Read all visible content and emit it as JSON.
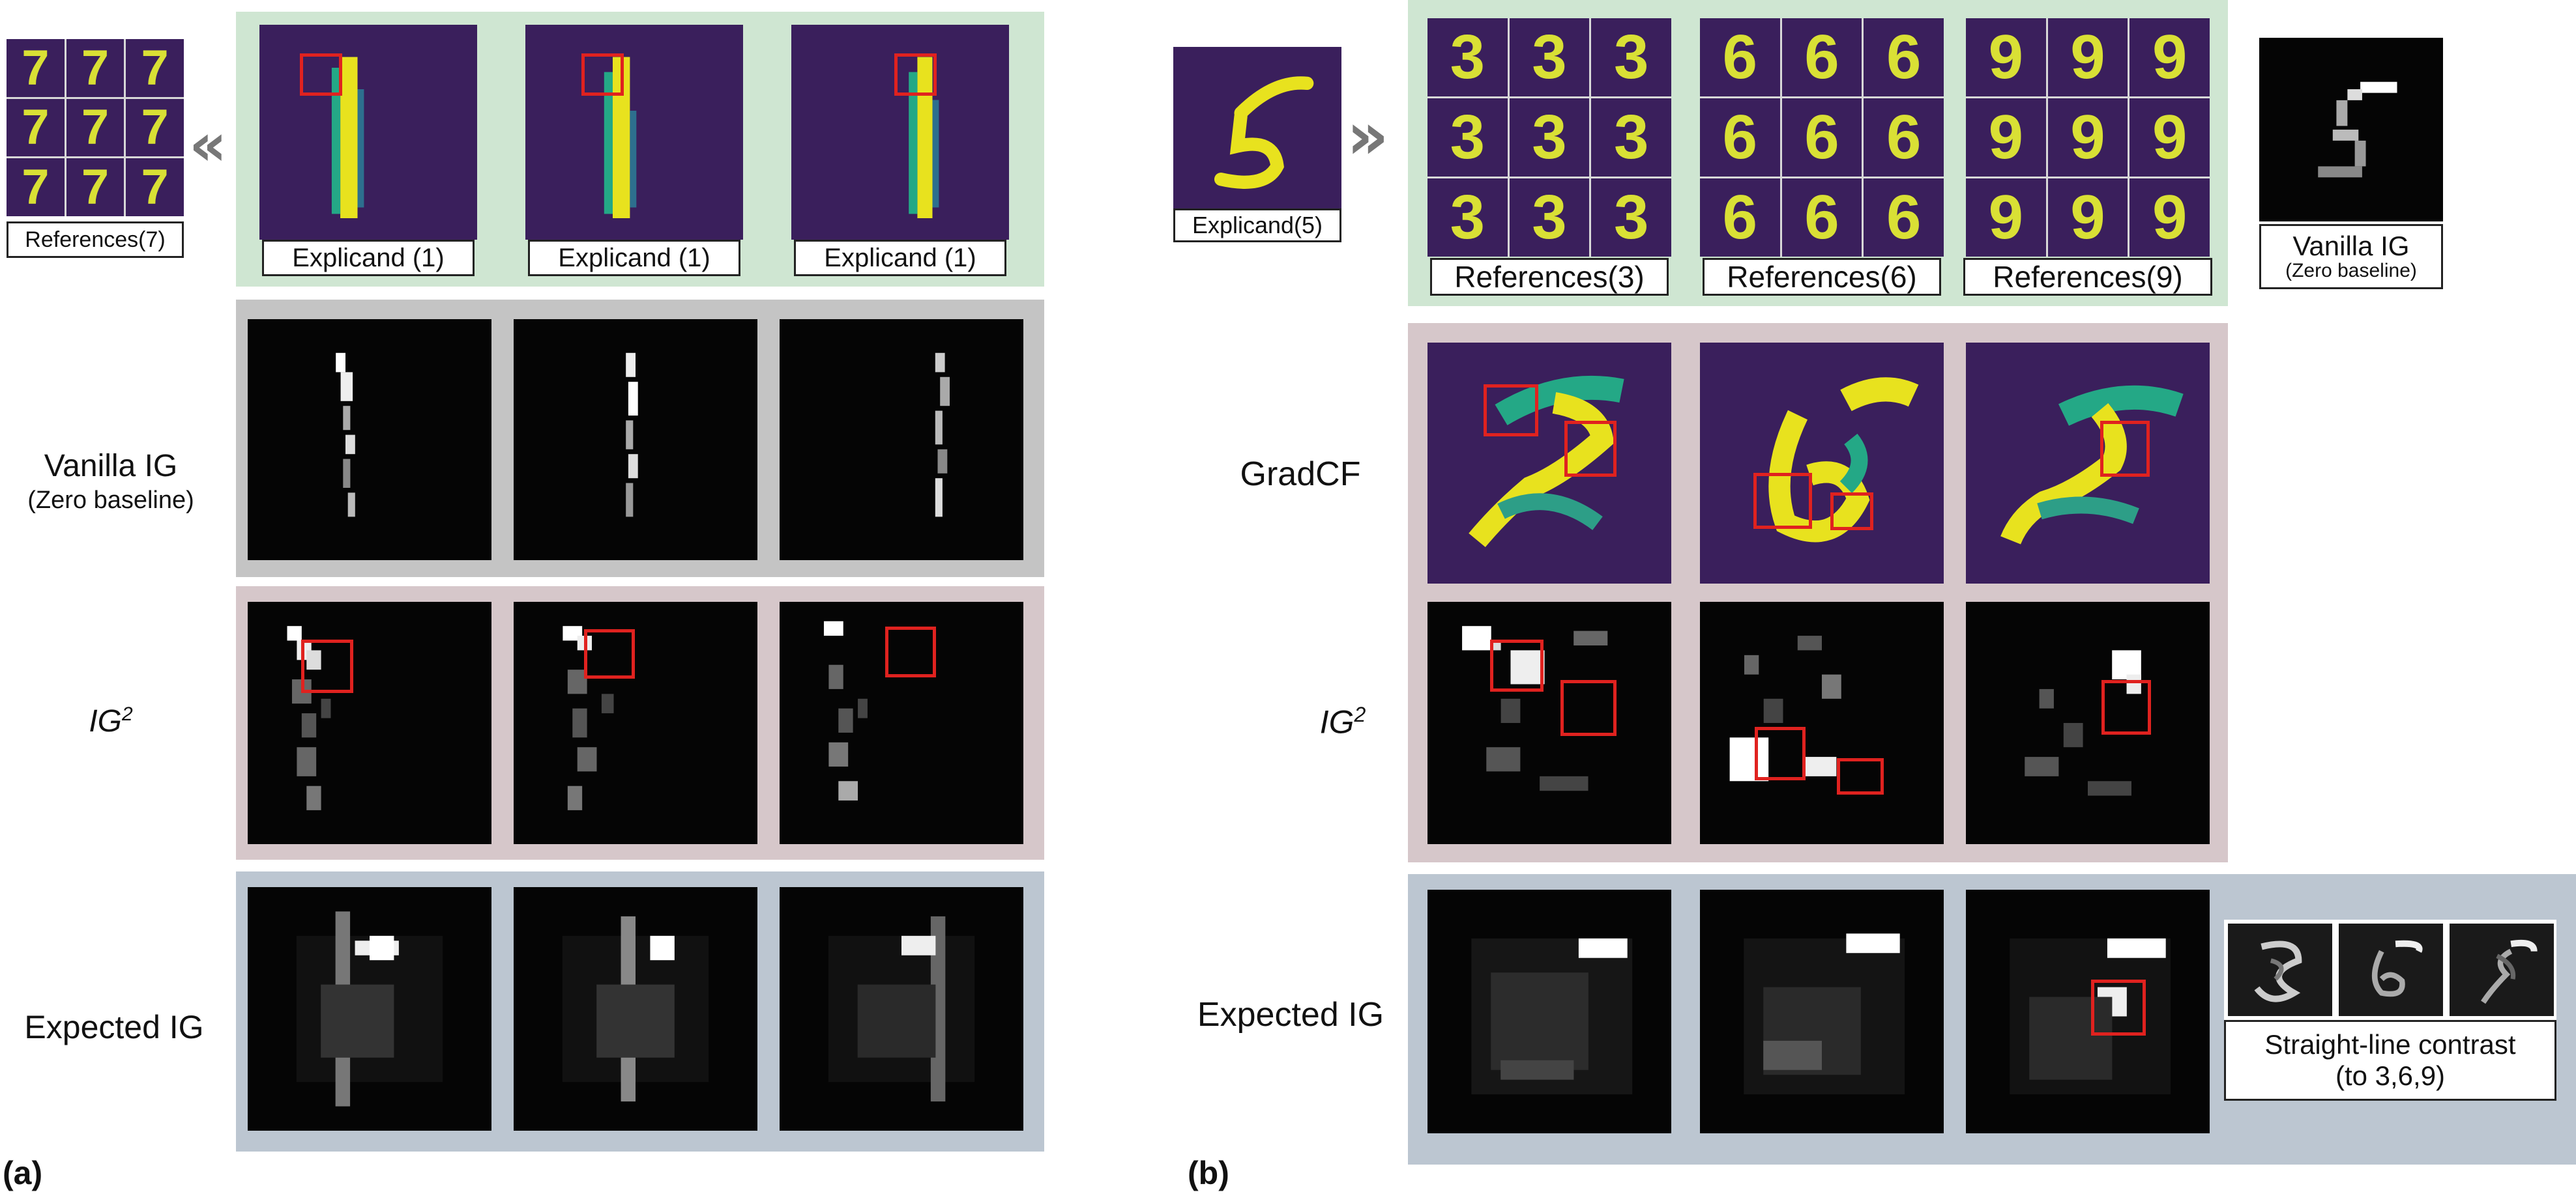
{
  "panel_a": {
    "letter": "(a)",
    "references_caption": "References(7)",
    "reference_digits": [
      "7",
      "7",
      "7",
      "7",
      "7",
      "7",
      "7",
      "7",
      "7"
    ],
    "explicand_captions": [
      "Explicand (1)",
      "Explicand (1)",
      "Explicand (1)"
    ],
    "explicand_digit": "1",
    "row_labels": {
      "vanilla_ig": "Vanilla IG",
      "vanilla_ig_sub": "(Zero baseline)",
      "ig2": "IG",
      "ig2_sup": "2",
      "expected_ig": "Expected IG"
    }
  },
  "panel_b": {
    "letter": "(b)",
    "explicand_caption": "Explicand(5)",
    "explicand_digit": "5",
    "reference_groups": [
      {
        "caption": "References(3)",
        "digits": [
          "3",
          "3",
          "3",
          "3",
          "3",
          "3",
          "3",
          "3",
          "3"
        ]
      },
      {
        "caption": "References(6)",
        "digits": [
          "6",
          "6",
          "6",
          "6",
          "6",
          "6",
          "6",
          "6",
          "6"
        ]
      },
      {
        "caption": "References(9)",
        "digits": [
          "9",
          "9",
          "9",
          "9",
          "9",
          "9",
          "9",
          "9",
          "9"
        ]
      }
    ],
    "vanilla_caption": "Vanilla IG",
    "vanilla_caption_sub": "(Zero baseline)",
    "row_labels": {
      "gradcf": "GradCF",
      "ig2": "IG",
      "ig2_sup": "2",
      "expected_ig": "Expected IG"
    },
    "straight_line_caption": "Straight-line contrast",
    "straight_line_caption_sub": "(to 3,6,9)",
    "chevron": "»",
    "chevron_left": "«"
  },
  "colors": {
    "green_band": "#cfe6d2",
    "gray_band": "#c4c4c4",
    "mauve_band": "#d6c7ca",
    "blue_band": "#bcc6d1",
    "viridis_bg": "#3a1f5c",
    "viridis_yellow": "#e8e21e",
    "viridis_teal": "#24a886",
    "red_box": "#e0221f"
  }
}
